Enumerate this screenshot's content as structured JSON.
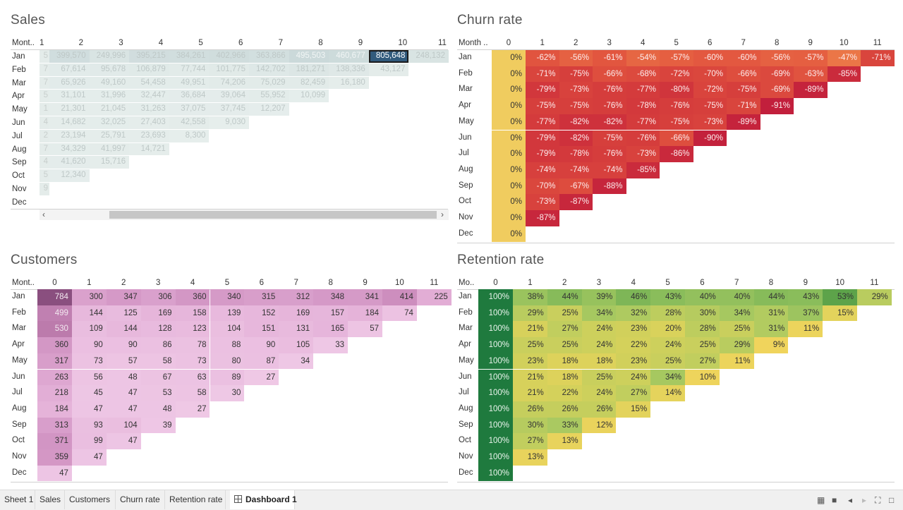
{
  "tabs": [
    {
      "label": "Sheet 1",
      "active": false
    },
    {
      "label": "Sales",
      "active": false
    },
    {
      "label": "Customers",
      "active": false
    },
    {
      "label": "Churn rate",
      "active": false
    },
    {
      "label": "Retention rate",
      "active": false
    },
    {
      "label": "Dashboard 1",
      "active": true
    }
  ],
  "tab_icons": [
    "sheet-sorter-icon",
    "filmstrip-icon",
    "prev-icon",
    "next-icon",
    "fullscreen-icon",
    "presentation-icon"
  ],
  "months": [
    "Jan",
    "Feb",
    "Mar",
    "Apr",
    "May",
    "Jun",
    "Jul",
    "Aug",
    "Sep",
    "Oct",
    "Nov",
    "Dec"
  ],
  "sales": {
    "title": "Sales",
    "corner": "Mont..",
    "columns": [
      "1",
      "2",
      "3",
      "4",
      "5",
      "6",
      "7",
      "8",
      "9",
      "10",
      "11"
    ],
    "first_col_partial": [
      "5",
      "7",
      "7",
      "5",
      "1",
      "4",
      "2",
      "7",
      "4",
      "5",
      "9",
      ""
    ],
    "rows": [
      [
        "399,570",
        "249,996",
        "395,215",
        "384,261",
        "402,966",
        "363,866",
        "495,503",
        "460,677",
        "805,648",
        "248,132"
      ],
      [
        "67,614",
        "95,678",
        "106,879",
        "77,744",
        "101,775",
        "142,702",
        "181,271",
        "138,336",
        "43,127"
      ],
      [
        "65,926",
        "49,160",
        "54,458",
        "49,951",
        "74,206",
        "75,029",
        "82,459",
        "16,180"
      ],
      [
        "31,101",
        "31,996",
        "32,447",
        "36,684",
        "39,064",
        "55,952",
        "10,099"
      ],
      [
        "21,301",
        "21,045",
        "31,263",
        "37,075",
        "37,745",
        "12,207"
      ],
      [
        "14,682",
        "32,025",
        "27,403",
        "42,558",
        "9,030"
      ],
      [
        "23,194",
        "25,791",
        "23,693",
        "8,300"
      ],
      [
        "34,329",
        "41,997",
        "14,721"
      ],
      [
        "41,620",
        "15,716"
      ],
      [
        "12,340"
      ],
      [],
      []
    ],
    "selected": "805,648"
  },
  "churn": {
    "title": "Churn rate",
    "corner": "Month ..",
    "columns": [
      "0",
      "1",
      "2",
      "3",
      "4",
      "5",
      "6",
      "7",
      "8",
      "9",
      "10",
      "11"
    ],
    "rows": [
      [
        "0%",
        "-62%",
        "-56%",
        "-61%",
        "-54%",
        "-57%",
        "-60%",
        "-60%",
        "-56%",
        "-57%",
        "-47%",
        "-71%"
      ],
      [
        "0%",
        "-71%",
        "-75%",
        "-66%",
        "-68%",
        "-72%",
        "-70%",
        "-66%",
        "-69%",
        "-63%",
        "-85%"
      ],
      [
        "0%",
        "-79%",
        "-73%",
        "-76%",
        "-77%",
        "-80%",
        "-72%",
        "-75%",
        "-69%",
        "-89%"
      ],
      [
        "0%",
        "-75%",
        "-75%",
        "-76%",
        "-78%",
        "-76%",
        "-75%",
        "-71%",
        "-91%"
      ],
      [
        "0%",
        "-77%",
        "-82%",
        "-82%",
        "-77%",
        "-75%",
        "-73%",
        "-89%"
      ],
      [
        "0%",
        "-79%",
        "-82%",
        "-75%",
        "-76%",
        "-66%",
        "-90%"
      ],
      [
        "0%",
        "-79%",
        "-78%",
        "-76%",
        "-73%",
        "-86%"
      ],
      [
        "0%",
        "-74%",
        "-74%",
        "-74%",
        "-85%"
      ],
      [
        "0%",
        "-70%",
        "-67%",
        "-88%"
      ],
      [
        "0%",
        "-73%",
        "-87%"
      ],
      [
        "0%",
        "-87%"
      ],
      [
        "0%"
      ]
    ]
  },
  "customers": {
    "title": "Customers",
    "corner": "Mont..",
    "columns": [
      "0",
      "1",
      "2",
      "3",
      "4",
      "5",
      "6",
      "7",
      "8",
      "9",
      "10",
      "11"
    ],
    "rows": [
      [
        "784",
        "300",
        "347",
        "306",
        "360",
        "340",
        "315",
        "312",
        "348",
        "341",
        "414",
        "225"
      ],
      [
        "499",
        "144",
        "125",
        "169",
        "158",
        "139",
        "152",
        "169",
        "157",
        "184",
        "74"
      ],
      [
        "530",
        "109",
        "144",
        "128",
        "123",
        "104",
        "151",
        "131",
        "165",
        "57"
      ],
      [
        "360",
        "90",
        "90",
        "86",
        "78",
        "88",
        "90",
        "105",
        "33"
      ],
      [
        "317",
        "73",
        "57",
        "58",
        "73",
        "80",
        "87",
        "34"
      ],
      [
        "263",
        "56",
        "48",
        "67",
        "63",
        "89",
        "27"
      ],
      [
        "218",
        "45",
        "47",
        "53",
        "58",
        "30"
      ],
      [
        "184",
        "47",
        "47",
        "48",
        "27"
      ],
      [
        "313",
        "93",
        "104",
        "39"
      ],
      [
        "371",
        "99",
        "47"
      ],
      [
        "359",
        "47"
      ],
      [
        "47"
      ]
    ]
  },
  "retention": {
    "title": "Retention rate",
    "corner": "Mo..",
    "columns": [
      "0",
      "1",
      "2",
      "3",
      "4",
      "5",
      "6",
      "7",
      "8",
      "9",
      "10",
      "11"
    ],
    "rows": [
      [
        "100%",
        "38%",
        "44%",
        "39%",
        "46%",
        "43%",
        "40%",
        "40%",
        "44%",
        "43%",
        "53%",
        "29%"
      ],
      [
        "100%",
        "29%",
        "25%",
        "34%",
        "32%",
        "28%",
        "30%",
        "34%",
        "31%",
        "37%",
        "15%"
      ],
      [
        "100%",
        "21%",
        "27%",
        "24%",
        "23%",
        "20%",
        "28%",
        "25%",
        "31%",
        "11%"
      ],
      [
        "100%",
        "25%",
        "25%",
        "24%",
        "22%",
        "24%",
        "25%",
        "29%",
        "9%"
      ],
      [
        "100%",
        "23%",
        "18%",
        "18%",
        "23%",
        "25%",
        "27%",
        "11%"
      ],
      [
        "100%",
        "21%",
        "18%",
        "25%",
        "24%",
        "34%",
        "10%"
      ],
      [
        "100%",
        "21%",
        "22%",
        "24%",
        "27%",
        "14%"
      ],
      [
        "100%",
        "26%",
        "26%",
        "26%",
        "15%"
      ],
      [
        "100%",
        "30%",
        "33%",
        "12%"
      ],
      [
        "100%",
        "27%",
        "13%"
      ],
      [
        "100%",
        "13%"
      ],
      [
        "100%"
      ]
    ]
  }
}
